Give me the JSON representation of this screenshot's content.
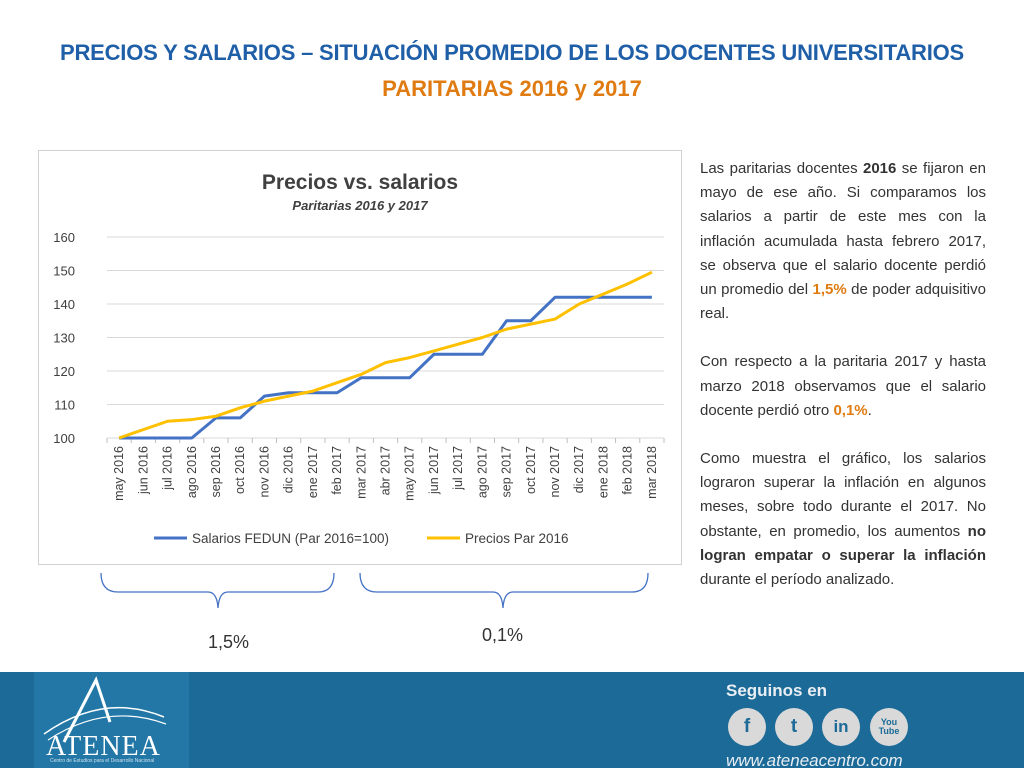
{
  "header": {
    "title": "PRECIOS Y SALARIOS – SITUACIÓN PROMEDIO DE LOS DOCENTES UNIVERSITARIOS",
    "subtitle": "PARITARIAS 2016 y 2017"
  },
  "chart_data": {
    "type": "line",
    "title": "Precios vs. salarios",
    "subtitle": "Paritarias 2016 y 2017",
    "categories": [
      "may 2016",
      "jun 2016",
      "jul 2016",
      "ago 2016",
      "sep 2016",
      "oct 2016",
      "nov 2016",
      "dic 2016",
      "ene 2017",
      "feb 2017",
      "mar 2017",
      "abr 2017",
      "may 2017",
      "jun 2017",
      "jul 2017",
      "ago 2017",
      "sep 2017",
      "oct 2017",
      "nov 2017",
      "dic 2017",
      "ene 2018",
      "feb 2018",
      "mar 2018"
    ],
    "ylim": [
      100,
      160
    ],
    "yticks": [
      "100",
      "110",
      "120",
      "130",
      "140",
      "150",
      "160"
    ],
    "series": [
      {
        "name": "Salarios FEDUN (Par 2016=100)",
        "color": "#4472c4",
        "values": [
          100,
          100,
          100,
          100,
          106,
          106,
          112.5,
          113.5,
          113.5,
          113.5,
          118,
          118,
          118,
          125,
          125,
          125,
          135,
          135,
          142,
          142,
          142,
          142,
          142
        ]
      },
      {
        "name": "Precios Par 2016",
        "color": "#ffc000",
        "values": [
          100,
          102.5,
          105,
          105.5,
          106.5,
          109,
          111,
          112.5,
          114,
          116.5,
          119,
          122.5,
          124,
          126,
          128,
          130,
          132.5,
          134,
          135.5,
          140,
          143,
          146,
          149.5
        ]
      }
    ],
    "grid": true,
    "legend": "bottom"
  },
  "annotations": {
    "left_brace": "1,5%",
    "right_brace": "0,1%"
  },
  "side": {
    "p1_a": "Las paritarias docentes ",
    "p1_b": "2016",
    "p1_c": " se fijaron en mayo de ese año. Si comparamos los salarios a partir de este mes con la inflación acumulada hasta febrero 2017, se observa que el salario docente perdió un promedio del ",
    "p1_d": "1,5%",
    "p1_e": " de poder adquisitivo real.",
    "p2_a": "Con respecto a la paritaria 2017 y hasta marzo 2018 observamos que el salario docente perdió otro ",
    "p2_b": "0,1%",
    "p2_c": ".",
    "p3_a": "Como muestra el gráfico, los salarios lograron superar la inflación en algunos meses, sobre todo durante el 2017. No obstante, en promedio, los aumentos ",
    "p3_b": "no logran empatar o superar la inflación",
    "p3_c": " durante el período analizado."
  },
  "footer": {
    "logo_text": "ATENEA",
    "logo_subtext": "Centro de Estudios para el Desarrollo Nacional",
    "follow_label": "Seguinos en",
    "social": [
      "f",
      "t",
      "in",
      "You Tube"
    ],
    "social_icons": [
      "facebook-icon",
      "twitter-icon",
      "linkedin-icon",
      "youtube-icon"
    ],
    "website": "www.ateneacentro.com"
  }
}
